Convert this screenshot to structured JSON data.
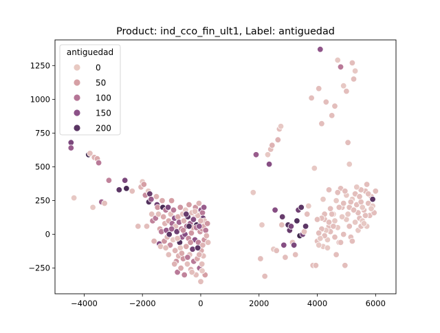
{
  "chart_data": {
    "type": "scatter",
    "title": "Product: ind_cco_fin_ult1, Label: antiguedad",
    "xlabel": "",
    "ylabel": "",
    "xlim": [
      -5000,
      6700
    ],
    "ylim": [
      -440,
      1440
    ],
    "x_ticks": [
      -4000,
      -2000,
      0,
      2000,
      4000,
      6000
    ],
    "x_tick_labels": [
      "−4000",
      "−2000",
      "0",
      "2000",
      "4000",
      "6000"
    ],
    "y_ticks": [
      -250,
      0,
      250,
      500,
      750,
      1000,
      1250
    ],
    "y_tick_labels": [
      "−250",
      "0",
      "250",
      "500",
      "750",
      "1000",
      "1250"
    ],
    "grid": false,
    "legend": {
      "title": "antiguedad",
      "position": "top-left",
      "entries": [
        {
          "label": "0",
          "color": "#e8c9c2"
        },
        {
          "label": "50",
          "color": "#d6a0a5"
        },
        {
          "label": "100",
          "color": "#b57596"
        },
        {
          "label": "150",
          "color": "#8c5288"
        },
        {
          "label": "200",
          "color": "#5a3563"
        }
      ]
    },
    "hue_range": [
      0,
      240
    ],
    "color_scale": [
      "#ecd3cc",
      "#d6a0a5",
      "#b57596",
      "#8c5288",
      "#5a3563",
      "#2d1e3e"
    ],
    "points": [
      [
        -4450,
        680,
        160
      ],
      [
        -4450,
        640,
        130
      ],
      [
        -4350,
        270,
        10
      ],
      [
        -3850,
        590,
        220
      ],
      [
        -3800,
        600,
        20
      ],
      [
        -3700,
        200,
        10
      ],
      [
        -3650,
        570,
        30
      ],
      [
        -3550,
        560,
        40
      ],
      [
        -3500,
        530,
        90
      ],
      [
        -3400,
        240,
        120
      ],
      [
        -3300,
        230,
        20
      ],
      [
        -3150,
        400,
        80
      ],
      [
        -2800,
        330,
        190
      ],
      [
        -2600,
        400,
        160
      ],
      [
        -2550,
        340,
        210
      ],
      [
        -2350,
        320,
        20
      ],
      [
        -2150,
        60,
        20
      ],
      [
        -2050,
        350,
        30
      ],
      [
        -2000,
        390,
        10
      ],
      [
        -1950,
        370,
        50
      ],
      [
        -1900,
        290,
        70
      ],
      [
        -1850,
        60,
        20
      ],
      [
        -1800,
        320,
        10
      ],
      [
        -1780,
        240,
        200
      ],
      [
        -1750,
        300,
        180
      ],
      [
        -1700,
        260,
        130
      ],
      [
        -1680,
        150,
        20
      ],
      [
        -1650,
        100,
        80
      ],
      [
        -1600,
        -50,
        30
      ],
      [
        -1550,
        120,
        90
      ],
      [
        -1520,
        280,
        30
      ],
      [
        -1500,
        220,
        170
      ],
      [
        -1480,
        200,
        60
      ],
      [
        -1450,
        150,
        20
      ],
      [
        -1420,
        -70,
        150
      ],
      [
        -1400,
        40,
        40
      ],
      [
        -1380,
        -90,
        20
      ],
      [
        -1350,
        20,
        90
      ],
      [
        -1320,
        250,
        40
      ],
      [
        -1300,
        200,
        210
      ],
      [
        -1280,
        130,
        40
      ],
      [
        -1250,
        -50,
        60
      ],
      [
        -1230,
        80,
        30
      ],
      [
        -1200,
        180,
        90
      ],
      [
        -1180,
        30,
        130
      ],
      [
        -1150,
        -20,
        30
      ],
      [
        -1120,
        200,
        160
      ],
      [
        -1100,
        100,
        40
      ],
      [
        -1080,
        0,
        190
      ],
      [
        -1050,
        -80,
        70
      ],
      [
        -1030,
        150,
        20
      ],
      [
        -1000,
        250,
        50
      ],
      [
        -980,
        80,
        110
      ],
      [
        -950,
        -40,
        10
      ],
      [
        -930,
        180,
        90
      ],
      [
        -900,
        120,
        140
      ],
      [
        -880,
        -120,
        30
      ],
      [
        -860,
        60,
        20
      ],
      [
        -840,
        -200,
        60
      ],
      [
        -820,
        20,
        170
      ],
      [
        -800,
        -280,
        90
      ],
      [
        -780,
        130,
        40
      ],
      [
        -760,
        -160,
        30
      ],
      [
        -740,
        90,
        120
      ],
      [
        -720,
        -60,
        200
      ],
      [
        -700,
        200,
        60
      ],
      [
        -680,
        -250,
        40
      ],
      [
        -660,
        40,
        80
      ],
      [
        -640,
        -20,
        130
      ],
      [
        -620,
        150,
        20
      ],
      [
        -600,
        -180,
        60
      ],
      [
        -580,
        100,
        30
      ],
      [
        -560,
        -300,
        80
      ],
      [
        -540,
        0,
        150
      ],
      [
        -520,
        180,
        10
      ],
      [
        -500,
        -90,
        40
      ],
      [
        -480,
        60,
        100
      ],
      [
        -460,
        -220,
        20
      ],
      [
        -440,
        130,
        190
      ],
      [
        -420,
        -30,
        70
      ],
      [
        -400,
        220,
        50
      ],
      [
        -380,
        -150,
        20
      ],
      [
        -360,
        80,
        120
      ],
      [
        -340,
        -260,
        30
      ],
      [
        -320,
        10,
        60
      ],
      [
        -300,
        160,
        20
      ],
      [
        -280,
        -110,
        170
      ],
      [
        -260,
        50,
        40
      ],
      [
        -240,
        -200,
        90
      ],
      [
        -220,
        120,
        30
      ],
      [
        -200,
        -40,
        140
      ],
      [
        -180,
        200,
        60
      ],
      [
        -160,
        -300,
        20
      ],
      [
        -140,
        70,
        210
      ],
      [
        -120,
        -180,
        40
      ],
      [
        -100,
        140,
        20
      ],
      [
        -80,
        -60,
        80
      ],
      [
        -60,
        230,
        30
      ],
      [
        -40,
        -250,
        110
      ],
      [
        -20,
        20,
        60
      ],
      [
        0,
        -350,
        20
      ],
      [
        10,
        180,
        140
      ],
      [
        20,
        -120,
        40
      ],
      [
        30,
        90,
        200
      ],
      [
        40,
        -220,
        20
      ],
      [
        50,
        40,
        60
      ],
      [
        60,
        160,
        90
      ],
      [
        70,
        -80,
        30
      ],
      [
        80,
        120,
        170
      ],
      [
        90,
        -160,
        20
      ],
      [
        100,
        60,
        40
      ],
      [
        110,
        200,
        130
      ],
      [
        120,
        -40,
        60
      ],
      [
        130,
        100,
        20
      ],
      [
        150,
        -300,
        50
      ],
      [
        170,
        30,
        90
      ],
      [
        200,
        -10,
        30
      ],
      [
        230,
        80,
        60
      ],
      [
        250,
        -60,
        20
      ],
      [
        -1100,
        -150,
        20
      ],
      [
        -900,
        -220,
        30
      ],
      [
        -700,
        -100,
        10
      ],
      [
        -500,
        150,
        180
      ],
      [
        -300,
        -280,
        20
      ],
      [
        -150,
        50,
        90
      ],
      [
        -50,
        -150,
        30
      ],
      [
        50,
        -270,
        10
      ],
      [
        -400,
        60,
        200
      ],
      [
        -250,
        110,
        150
      ],
      [
        -600,
        30,
        70
      ],
      [
        -800,
        -30,
        20
      ],
      [
        -1000,
        40,
        120
      ],
      [
        -1200,
        -100,
        20
      ],
      [
        -350,
        -60,
        60
      ],
      [
        -200,
        170,
        20
      ],
      [
        -100,
        -100,
        190
      ],
      [
        0,
        100,
        30
      ],
      [
        -650,
        -140,
        40
      ],
      [
        -450,
        -170,
        90
      ],
      [
        -50,
        60,
        140
      ],
      [
        1800,
        310,
        10
      ],
      [
        1900,
        590,
        130
      ],
      [
        2050,
        -180,
        20
      ],
      [
        2100,
        70,
        10
      ],
      [
        2200,
        -310,
        20
      ],
      [
        2300,
        590,
        10
      ],
      [
        2350,
        520,
        150
      ],
      [
        2400,
        630,
        20
      ],
      [
        2450,
        660,
        30
      ],
      [
        2500,
        -110,
        10
      ],
      [
        2550,
        180,
        150
      ],
      [
        2600,
        -120,
        20
      ],
      [
        2650,
        700,
        30
      ],
      [
        2700,
        780,
        20
      ],
      [
        2750,
        800,
        10
      ],
      [
        2780,
        70,
        20
      ],
      [
        2800,
        130,
        180
      ],
      [
        2850,
        -80,
        150
      ],
      [
        2900,
        -170,
        20
      ],
      [
        3000,
        70,
        200
      ],
      [
        3050,
        30,
        180
      ],
      [
        3100,
        60,
        160
      ],
      [
        3150,
        -60,
        20
      ],
      [
        3200,
        -80,
        160
      ],
      [
        3250,
        -150,
        20
      ],
      [
        3300,
        100,
        200
      ],
      [
        3350,
        180,
        170
      ],
      [
        3400,
        -10,
        220
      ],
      [
        3450,
        200,
        190
      ],
      [
        3500,
        0,
        160
      ],
      [
        3550,
        20,
        20
      ],
      [
        3600,
        60,
        190
      ],
      [
        3650,
        150,
        20
      ],
      [
        3700,
        210,
        10
      ],
      [
        3800,
        1010,
        20
      ],
      [
        3850,
        -230,
        20
      ],
      [
        3900,
        490,
        10
      ],
      [
        3950,
        -230,
        20
      ],
      [
        4000,
        -50,
        20
      ],
      [
        4050,
        1080,
        20
      ],
      [
        4100,
        1370,
        140
      ],
      [
        4150,
        820,
        20
      ],
      [
        4200,
        -90,
        10
      ],
      [
        4250,
        110,
        20
      ],
      [
        4300,
        980,
        20
      ],
      [
        4350,
        -40,
        10
      ],
      [
        4400,
        60,
        20
      ],
      [
        4450,
        20,
        20
      ],
      [
        4500,
        880,
        20
      ],
      [
        4550,
        150,
        10
      ],
      [
        4600,
        950,
        20
      ],
      [
        4650,
        -150,
        20
      ],
      [
        4700,
        1290,
        10
      ],
      [
        4750,
        -60,
        20
      ],
      [
        4800,
        1240,
        90
      ],
      [
        4850,
        200,
        20
      ],
      [
        4900,
        1100,
        10
      ],
      [
        4950,
        -230,
        20
      ],
      [
        5000,
        1060,
        20
      ],
      [
        5050,
        680,
        20
      ],
      [
        5100,
        520,
        10
      ],
      [
        5150,
        -20,
        20
      ],
      [
        5200,
        1270,
        20
      ],
      [
        5250,
        1150,
        20
      ],
      [
        5300,
        1210,
        10
      ],
      [
        5350,
        220,
        20
      ],
      [
        5400,
        30,
        10
      ],
      [
        5450,
        120,
        20
      ],
      [
        5500,
        240,
        20
      ],
      [
        5550,
        100,
        10
      ],
      [
        5600,
        180,
        20
      ],
      [
        5650,
        320,
        20
      ],
      [
        5700,
        60,
        10
      ],
      [
        5750,
        230,
        20
      ],
      [
        5800,
        140,
        20
      ],
      [
        5850,
        280,
        20
      ],
      [
        5900,
        210,
        10
      ],
      [
        5950,
        160,
        20
      ],
      [
        6000,
        320,
        20
      ],
      [
        5700,
        370,
        20
      ],
      [
        5900,
        260,
        190
      ],
      [
        5500,
        330,
        20
      ],
      [
        5000,
        290,
        10
      ],
      [
        4800,
        340,
        20
      ],
      [
        4700,
        310,
        20
      ],
      [
        4600,
        100,
        10
      ],
      [
        4500,
        150,
        20
      ],
      [
        4400,
        90,
        20
      ],
      [
        4300,
        30,
        10
      ],
      [
        4250,
        -10,
        20
      ],
      [
        4150,
        40,
        20
      ],
      [
        4100,
        -30,
        10
      ],
      [
        4050,
        10,
        20
      ],
      [
        4600,
        -20,
        20
      ],
      [
        4700,
        50,
        10
      ],
      [
        4800,
        -60,
        20
      ],
      [
        4900,
        0,
        20
      ],
      [
        5000,
        110,
        10
      ],
      [
        5100,
        60,
        20
      ],
      [
        5200,
        -50,
        20
      ],
      [
        5300,
        90,
        10
      ],
      [
        5400,
        160,
        20
      ],
      [
        5500,
        60,
        20
      ],
      [
        5600,
        80,
        10
      ],
      [
        5100,
        200,
        20
      ],
      [
        5200,
        260,
        10
      ],
      [
        5300,
        300,
        20
      ],
      [
        4900,
        230,
        20
      ],
      [
        5050,
        150,
        10
      ],
      [
        5150,
        240,
        20
      ],
      [
        5250,
        180,
        20
      ],
      [
        5350,
        350,
        10
      ],
      [
        5450,
        280,
        20
      ],
      [
        5550,
        200,
        10
      ],
      [
        5650,
        140,
        20
      ],
      [
        5750,
        300,
        20
      ],
      [
        5850,
        190,
        10
      ],
      [
        4950,
        320,
        20
      ],
      [
        4850,
        130,
        10
      ],
      [
        4750,
        200,
        20
      ],
      [
        4650,
        250,
        10
      ],
      [
        4550,
        60,
        20
      ],
      [
        4450,
        190,
        20
      ],
      [
        4350,
        -100,
        10
      ],
      [
        4250,
        150,
        20
      ],
      [
        4150,
        120,
        20
      ],
      [
        4050,
        -80,
        10
      ],
      [
        4000,
        110,
        20
      ],
      [
        4200,
        260,
        10
      ],
      [
        4400,
        330,
        20
      ]
    ]
  }
}
